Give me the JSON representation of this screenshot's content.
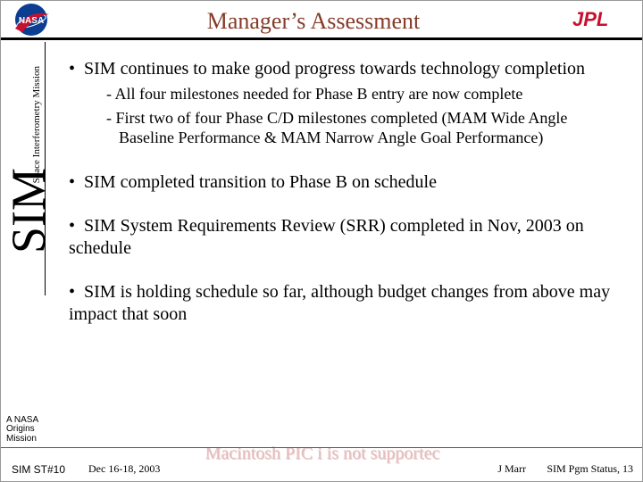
{
  "header": {
    "title": "Manager’s Assessment",
    "nasa_label": "NASA",
    "jpl_label": "JPL",
    "colors": {
      "title_color": "#863a28",
      "jpl_red": "#c8102e",
      "nasa_blue": "#0b3d91"
    }
  },
  "left_rail": {
    "big": "SIM",
    "subtitle": "Space Interferometry Mission"
  },
  "bullets": [
    {
      "level": 1,
      "text": "SIM continues to make good progress towards technology completion"
    },
    {
      "level": 2,
      "text": "All four milestones needed for Phase B entry are now complete"
    },
    {
      "level": 2,
      "text": "First two of four Phase C/D milestones completed (MAM Wide Angle Baseline Performance & MAM Narrow Angle Goal Performance)"
    },
    {
      "level": 0,
      "text": ""
    },
    {
      "level": 1,
      "text": "SIM completed transition to Phase B on schedule"
    },
    {
      "level": 0,
      "text": ""
    },
    {
      "level": 1,
      "text": "SIM System Requirements Review (SRR) completed in Nov, 2003 on schedule"
    },
    {
      "level": 0,
      "text": ""
    },
    {
      "level": 1,
      "text": "SIM is holding schedule so far, although budget changes from above may impact that soon"
    }
  ],
  "origins": {
    "line1": "A NASA",
    "line2": "Origins",
    "line3": "Mission"
  },
  "footer": {
    "left": "SIM ST#10",
    "date": "Dec 16-18, 2003",
    "author": "J Marr",
    "page": "SIM Pgm Status, 13"
  },
  "ghost_text": "Macintosh PIC i is not supportec"
}
